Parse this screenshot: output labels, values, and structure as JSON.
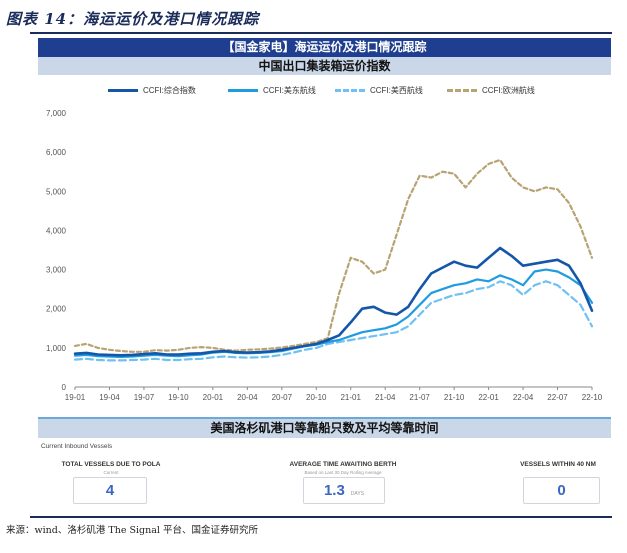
{
  "figure_title": "图表 14：海运运价及港口情况跟踪",
  "banner": "【国金家电】海运运价及港口情况跟踪",
  "colors": {
    "ccfi_total": "#1456a8",
    "ccfi_us_east": "#1f9be0",
    "ccfi_us_west": "#6ec1f2",
    "ccfi_europe": "#b8a373",
    "banner_bg": "#1f3e8f",
    "subbanner_bg": "#c9d7e8"
  },
  "chart_data": {
    "type": "line",
    "title": "中国出口集装箱运价指数",
    "xlabel": "",
    "ylabel": "",
    "ylim": [
      0,
      7000
    ],
    "yticks": [
      "0",
      "1,000",
      "2,000",
      "3,000",
      "4,000",
      "5,000",
      "6,000",
      "7,000"
    ],
    "xticks": [
      "19-01",
      "19-04",
      "19-07",
      "19-10",
      "20-01",
      "20-04",
      "20-07",
      "20-10",
      "21-01",
      "21-04",
      "21-07",
      "21-10",
      "22-01",
      "22-04",
      "22-07",
      "22-10"
    ],
    "x_months": [
      0,
      1,
      2,
      3,
      4,
      5,
      6,
      7,
      8,
      9,
      10,
      11,
      12,
      13,
      14,
      15,
      16,
      17,
      18,
      19,
      20,
      21,
      22,
      23,
      24,
      25,
      26,
      27,
      28,
      29,
      30,
      31,
      32,
      33,
      34,
      35,
      36,
      37,
      38,
      39,
      40,
      41,
      42,
      43,
      44,
      45
    ],
    "series": [
      {
        "name": "CCFI:综合指数",
        "color_key": "ccfi_total",
        "style": "solid",
        "values": [
          850,
          870,
          830,
          820,
          810,
          820,
          840,
          860,
          830,
          830,
          850,
          860,
          900,
          920,
          890,
          880,
          890,
          910,
          950,
          1000,
          1050,
          1100,
          1200,
          1320,
          1650,
          2000,
          2050,
          1900,
          1850,
          2050,
          2500,
          2900,
          3050,
          3200,
          3100,
          3050,
          3300,
          3550,
          3350,
          3100,
          3150,
          3200,
          3250,
          3100,
          2650,
          1950
        ]
      },
      {
        "name": "CCFI:美东航线",
        "color_key": "ccfi_us_east",
        "style": "solid",
        "values": [
          800,
          820,
          790,
          780,
          770,
          780,
          800,
          820,
          800,
          790,
          810,
          830,
          880,
          900,
          870,
          860,
          870,
          890,
          920,
          980,
          1040,
          1080,
          1150,
          1200,
          1300,
          1400,
          1450,
          1500,
          1600,
          1800,
          2100,
          2400,
          2500,
          2600,
          2650,
          2750,
          2700,
          2850,
          2750,
          2600,
          2950,
          3000,
          2950,
          2800,
          2600,
          2150
        ]
      },
      {
        "name": "CCFI:美西航线",
        "color_key": "ccfi_us_west",
        "style": "dashed",
        "values": [
          700,
          720,
          690,
          680,
          680,
          690,
          700,
          720,
          690,
          690,
          710,
          720,
          760,
          780,
          760,
          750,
          760,
          780,
          820,
          880,
          950,
          1000,
          1100,
          1150,
          1200,
          1250,
          1300,
          1350,
          1400,
          1550,
          1850,
          2150,
          2250,
          2350,
          2400,
          2500,
          2550,
          2700,
          2600,
          2350,
          2600,
          2700,
          2600,
          2350,
          2100,
          1550
        ]
      },
      {
        "name": "CCFI:欧洲航线",
        "color_key": "ccfi_europe",
        "style": "dashed",
        "values": [
          1050,
          1100,
          1000,
          950,
          920,
          900,
          900,
          940,
          930,
          950,
          1000,
          1020,
          1000,
          950,
          930,
          950,
          960,
          980,
          1010,
          1050,
          1100,
          1150,
          1250,
          2400,
          3300,
          3200,
          2900,
          3000,
          3900,
          4800,
          5400,
          5350,
          5500,
          5450,
          5100,
          5450,
          5700,
          5800,
          5350,
          5100,
          5000,
          5100,
          5050,
          4700,
          4100,
          3300
        ]
      }
    ]
  },
  "vessels": {
    "banner": "美国洛杉矶港口等靠船只数及平均等靠时间",
    "panel_title": "Current Inbound Vessels",
    "total": {
      "label": "TOTAL VESSELS DUE TO POLA",
      "sub": "Current",
      "value": "4"
    },
    "berth": {
      "label": "AVERAGE TIME AWAITING BERTH",
      "sub": "Based on Last 30 Day Rolling Average",
      "value": "1.3",
      "unit": "DAYS"
    },
    "within": {
      "label": "VESSELS WITHIN 40 NM",
      "value": "0"
    }
  },
  "source": "来源：wind、洛杉矶港 The Signal 平台、国金证券研究所"
}
